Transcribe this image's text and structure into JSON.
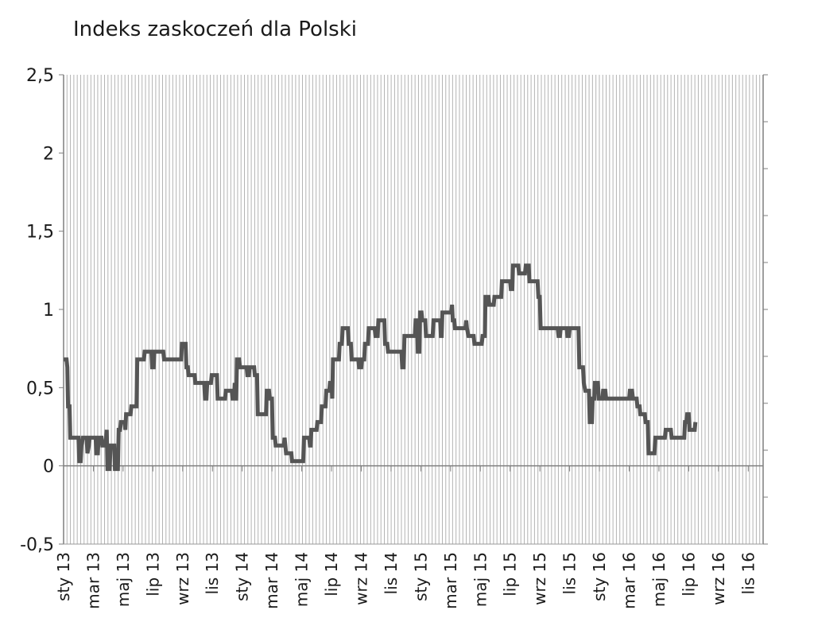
{
  "chart_data": {
    "type": "line",
    "title": "Indeks zaskoczeń dla Polski",
    "xlabel": "",
    "ylabel": "",
    "ylim": [
      -0.5,
      2.5
    ],
    "yticks": [
      -0.5,
      0,
      0.5,
      1,
      1.5,
      2,
      2.5
    ],
    "ytick_labels": [
      "-0,5",
      "0",
      "0,5",
      "1",
      "1,5",
      "2",
      "2,5"
    ],
    "x_tick_labels": [
      "sty 13",
      "mar 13",
      "maj 13",
      "lip 13",
      "wrz 13",
      "lis 13",
      "sty 14",
      "mar 14",
      "maj 14",
      "lip 14",
      "wrz 14",
      "lis 14",
      "sty 15",
      "mar 15",
      "maj 15",
      "lip 15",
      "wrz 15",
      "lis 15",
      "sty 16",
      "mar 16",
      "maj 16",
      "lip 16",
      "wrz 16",
      "lis 16"
    ],
    "x_range_months": [
      0,
      47
    ],
    "grid": "vertical-dense",
    "line_color": "#555555",
    "series": [
      {
        "values": [
          [
            0.0,
            0.68
          ],
          [
            0.2,
            0.68
          ],
          [
            0.25,
            0.63
          ],
          [
            0.3,
            0.38
          ],
          [
            0.4,
            0.38
          ],
          [
            0.45,
            0.18
          ],
          [
            0.9,
            0.18
          ],
          [
            1.0,
            0.18
          ],
          [
            1.05,
            0.03
          ],
          [
            1.15,
            0.03
          ],
          [
            1.2,
            0.13
          ],
          [
            1.3,
            0.18
          ],
          [
            1.55,
            0.18
          ],
          [
            1.6,
            0.08
          ],
          [
            1.7,
            0.13
          ],
          [
            1.75,
            0.18
          ],
          [
            2.15,
            0.18
          ],
          [
            2.2,
            0.08
          ],
          [
            2.3,
            0.08
          ],
          [
            2.35,
            0.18
          ],
          [
            2.55,
            0.18
          ],
          [
            2.6,
            0.13
          ],
          [
            2.8,
            0.13
          ],
          [
            2.9,
            0.23
          ],
          [
            2.95,
            -0.02
          ],
          [
            3.1,
            -0.02
          ],
          [
            3.15,
            0.13
          ],
          [
            3.4,
            0.13
          ],
          [
            3.45,
            -0.02
          ],
          [
            3.65,
            -0.02
          ],
          [
            3.7,
            0.23
          ],
          [
            3.8,
            0.23
          ],
          [
            3.85,
            0.28
          ],
          [
            4.1,
            0.28
          ],
          [
            4.15,
            0.23
          ],
          [
            4.2,
            0.33
          ],
          [
            4.5,
            0.33
          ],
          [
            4.55,
            0.38
          ],
          [
            4.9,
            0.38
          ],
          [
            4.95,
            0.68
          ],
          [
            5.4,
            0.68
          ],
          [
            5.45,
            0.73
          ],
          [
            5.9,
            0.73
          ],
          [
            5.95,
            0.63
          ],
          [
            6.05,
            0.63
          ],
          [
            6.1,
            0.73
          ],
          [
            6.7,
            0.73
          ],
          [
            6.75,
            0.68
          ],
          [
            7.9,
            0.68
          ],
          [
            7.95,
            0.78
          ],
          [
            8.2,
            0.78
          ],
          [
            8.25,
            0.63
          ],
          [
            8.35,
            0.63
          ],
          [
            8.4,
            0.58
          ],
          [
            8.8,
            0.58
          ],
          [
            8.85,
            0.53
          ],
          [
            9.45,
            0.53
          ],
          [
            9.5,
            0.43
          ],
          [
            9.6,
            0.43
          ],
          [
            9.65,
            0.53
          ],
          [
            9.9,
            0.53
          ],
          [
            9.95,
            0.58
          ],
          [
            10.3,
            0.58
          ],
          [
            10.35,
            0.43
          ],
          [
            10.85,
            0.43
          ],
          [
            10.9,
            0.48
          ],
          [
            11.3,
            0.48
          ],
          [
            11.35,
            0.43
          ],
          [
            11.45,
            0.43
          ],
          [
            11.5,
            0.53
          ],
          [
            11.55,
            0.43
          ],
          [
            11.6,
            0.43
          ],
          [
            11.65,
            0.68
          ],
          [
            11.8,
            0.68
          ],
          [
            11.85,
            0.63
          ],
          [
            12.3,
            0.63
          ],
          [
            12.35,
            0.58
          ],
          [
            12.45,
            0.58
          ],
          [
            12.5,
            0.63
          ],
          [
            12.8,
            0.63
          ],
          [
            12.85,
            0.58
          ],
          [
            13.0,
            0.58
          ],
          [
            13.05,
            0.33
          ],
          [
            13.6,
            0.33
          ],
          [
            13.65,
            0.48
          ],
          [
            13.8,
            0.48
          ],
          [
            13.85,
            0.43
          ],
          [
            14.0,
            0.43
          ],
          [
            14.05,
            0.18
          ],
          [
            14.2,
            0.18
          ],
          [
            14.25,
            0.13
          ],
          [
            14.8,
            0.13
          ],
          [
            14.85,
            0.18
          ],
          [
            14.95,
            0.08
          ],
          [
            15.3,
            0.08
          ],
          [
            15.35,
            0.03
          ],
          [
            16.1,
            0.03
          ],
          [
            16.15,
            0.18
          ],
          [
            16.5,
            0.18
          ],
          [
            16.55,
            0.13
          ],
          [
            16.6,
            0.13
          ],
          [
            16.65,
            0.23
          ],
          [
            17.0,
            0.23
          ],
          [
            17.05,
            0.28
          ],
          [
            17.3,
            0.28
          ],
          [
            17.35,
            0.38
          ],
          [
            17.6,
            0.38
          ],
          [
            17.65,
            0.48
          ],
          [
            17.85,
            0.48
          ],
          [
            17.9,
            0.53
          ],
          [
            18.0,
            0.53
          ],
          [
            18.05,
            0.43
          ],
          [
            18.1,
            0.68
          ],
          [
            18.5,
            0.68
          ],
          [
            18.55,
            0.78
          ],
          [
            18.7,
            0.78
          ],
          [
            18.75,
            0.88
          ],
          [
            19.1,
            0.88
          ],
          [
            19.15,
            0.78
          ],
          [
            19.3,
            0.78
          ],
          [
            19.35,
            0.68
          ],
          [
            19.8,
            0.68
          ],
          [
            19.85,
            0.63
          ],
          [
            20.0,
            0.63
          ],
          [
            20.05,
            0.68
          ],
          [
            20.2,
            0.68
          ],
          [
            20.25,
            0.78
          ],
          [
            20.45,
            0.78
          ],
          [
            20.5,
            0.88
          ],
          [
            20.9,
            0.88
          ],
          [
            20.95,
            0.83
          ],
          [
            21.1,
            0.83
          ],
          [
            21.15,
            0.93
          ],
          [
            21.55,
            0.93
          ],
          [
            21.6,
            0.78
          ],
          [
            21.75,
            0.78
          ],
          [
            21.8,
            0.73
          ],
          [
            22.7,
            0.73
          ],
          [
            22.75,
            0.63
          ],
          [
            22.85,
            0.63
          ],
          [
            22.9,
            0.83
          ],
          [
            23.6,
            0.83
          ],
          [
            23.65,
            0.93
          ],
          [
            23.75,
            0.93
          ],
          [
            23.8,
            0.73
          ],
          [
            23.9,
            0.73
          ],
          [
            23.95,
            0.98
          ],
          [
            24.05,
            0.98
          ],
          [
            24.1,
            0.93
          ],
          [
            24.3,
            0.93
          ],
          [
            24.35,
            0.83
          ],
          [
            24.8,
            0.83
          ],
          [
            24.85,
            0.93
          ],
          [
            25.3,
            0.93
          ],
          [
            25.35,
            0.83
          ],
          [
            25.4,
            0.83
          ],
          [
            25.45,
            0.98
          ],
          [
            26.05,
            0.98
          ],
          [
            26.1,
            1.03
          ],
          [
            26.15,
            0.93
          ],
          [
            26.25,
            0.93
          ],
          [
            26.3,
            0.88
          ],
          [
            27.0,
            0.88
          ],
          [
            27.05,
            0.93
          ],
          [
            27.1,
            0.88
          ],
          [
            27.2,
            0.83
          ],
          [
            27.55,
            0.83
          ],
          [
            27.6,
            0.78
          ],
          [
            28.1,
            0.78
          ],
          [
            28.15,
            0.83
          ],
          [
            28.3,
            0.83
          ],
          [
            28.35,
            1.08
          ],
          [
            28.55,
            1.08
          ],
          [
            28.6,
            1.03
          ],
          [
            28.9,
            1.03
          ],
          [
            28.95,
            1.08
          ],
          [
            29.4,
            1.08
          ],
          [
            29.45,
            1.18
          ],
          [
            30.0,
            1.18
          ],
          [
            30.05,
            1.13
          ],
          [
            30.15,
            1.13
          ],
          [
            30.2,
            1.28
          ],
          [
            30.55,
            1.28
          ],
          [
            30.6,
            1.23
          ],
          [
            31.0,
            1.23
          ],
          [
            31.05,
            1.28
          ],
          [
            31.25,
            1.28
          ],
          [
            31.3,
            1.18
          ],
          [
            31.85,
            1.18
          ],
          [
            31.9,
            1.08
          ],
          [
            32.0,
            1.08
          ],
          [
            32.05,
            0.88
          ],
          [
            33.2,
            0.88
          ],
          [
            33.25,
            0.83
          ],
          [
            33.35,
            0.83
          ],
          [
            33.4,
            0.88
          ],
          [
            33.8,
            0.88
          ],
          [
            33.85,
            0.83
          ],
          [
            33.95,
            0.83
          ],
          [
            34.0,
            0.88
          ],
          [
            34.6,
            0.88
          ],
          [
            34.65,
            0.63
          ],
          [
            34.9,
            0.63
          ],
          [
            34.95,
            0.53
          ],
          [
            35.05,
            0.48
          ],
          [
            35.3,
            0.48
          ],
          [
            35.35,
            0.28
          ],
          [
            35.5,
            0.28
          ],
          [
            35.55,
            0.43
          ],
          [
            35.65,
            0.43
          ],
          [
            35.7,
            0.53
          ],
          [
            35.9,
            0.53
          ],
          [
            35.95,
            0.43
          ],
          [
            36.2,
            0.43
          ],
          [
            36.25,
            0.48
          ],
          [
            36.4,
            0.48
          ],
          [
            36.45,
            0.43
          ],
          [
            38.0,
            0.43
          ],
          [
            38.05,
            0.48
          ],
          [
            38.2,
            0.48
          ],
          [
            38.25,
            0.43
          ],
          [
            38.5,
            0.43
          ],
          [
            38.55,
            0.38
          ],
          [
            38.7,
            0.38
          ],
          [
            38.75,
            0.33
          ],
          [
            39.05,
            0.33
          ],
          [
            39.1,
            0.28
          ],
          [
            39.25,
            0.28
          ],
          [
            39.3,
            0.08
          ],
          [
            39.7,
            0.08
          ],
          [
            39.75,
            0.18
          ],
          [
            40.4,
            0.18
          ],
          [
            40.45,
            0.23
          ],
          [
            40.8,
            0.23
          ],
          [
            40.85,
            0.18
          ],
          [
            41.7,
            0.18
          ],
          [
            41.75,
            0.28
          ],
          [
            41.85,
            0.28
          ],
          [
            41.9,
            0.33
          ],
          [
            42.0,
            0.33
          ],
          [
            42.05,
            0.23
          ],
          [
            42.4,
            0.23
          ],
          [
            42.45,
            0.28
          ]
        ]
      }
    ]
  }
}
